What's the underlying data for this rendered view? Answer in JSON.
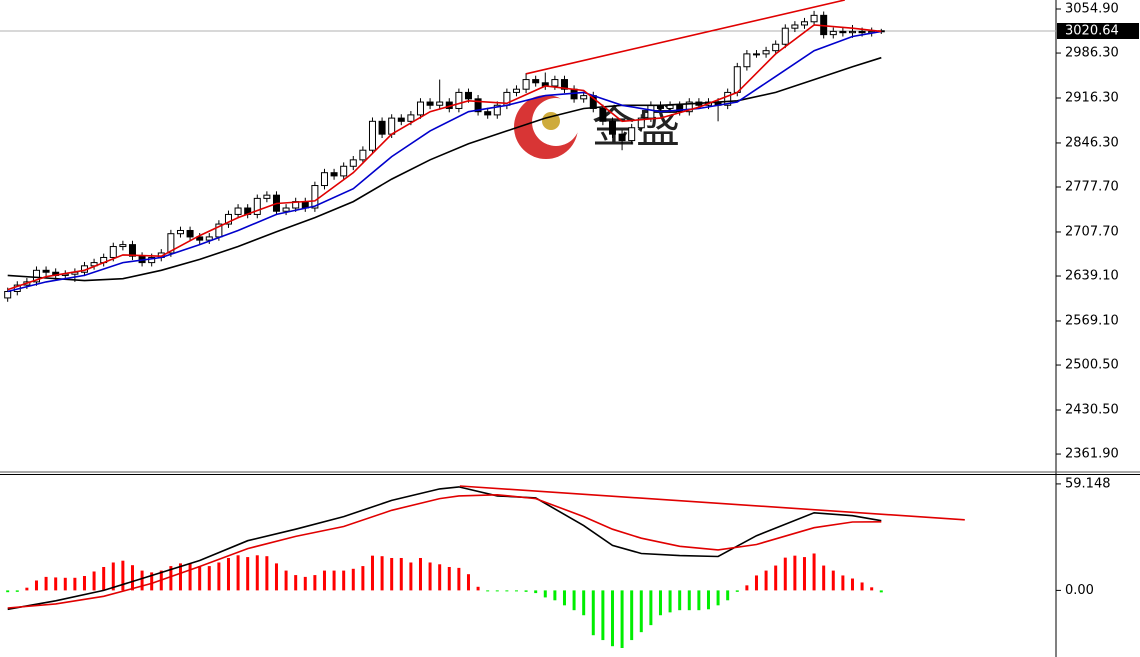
{
  "chart_data": [
    {
      "type": "candlestick",
      "xlim": [
        -0.8,
        109.2
      ],
      "ylim": [
        2335.5,
        3068.9
      ],
      "yticks": [
        {
          "value": 3054.9,
          "label": "3054.90"
        },
        {
          "value": 2986.3,
          "label": "2986.30"
        },
        {
          "value": 2916.3,
          "label": "2916.30"
        },
        {
          "value": 2846.3,
          "label": "2846.30"
        },
        {
          "value": 2777.7,
          "label": "2777.70"
        },
        {
          "value": 2707.7,
          "label": "2707.70"
        },
        {
          "value": 2639.1,
          "label": "2639.10"
        },
        {
          "value": 2569.1,
          "label": "2569.10"
        },
        {
          "value": 2500.5,
          "label": "2500.50"
        },
        {
          "value": 2430.5,
          "label": "2430.50"
        },
        {
          "value": 2361.9,
          "label": "2361.90"
        }
      ],
      "grid": false,
      "last_price": 3020.64,
      "watermark": "金盛",
      "up_color": "#ffffff",
      "down_color": "#000000",
      "open": [
        2605,
        2615,
        2625,
        2630,
        2648,
        2645,
        2640,
        2642,
        2645,
        2655,
        2660,
        2668,
        2685,
        2688,
        2670,
        2660,
        2668,
        2675,
        2705,
        2710,
        2700,
        2695,
        2700,
        2720,
        2735,
        2745,
        2735,
        2760,
        2765,
        2740,
        2745,
        2755,
        2745,
        2780,
        2800,
        2795,
        2810,
        2820,
        2835,
        2880,
        2860,
        2885,
        2880,
        2890,
        2910,
        2905,
        2910,
        2900,
        2925,
        2915,
        2895,
        2890,
        2905,
        2925,
        2930,
        2945,
        2940,
        2935,
        2945,
        2930,
        2915,
        2920,
        2900,
        2880,
        2860,
        2850,
        2870,
        2885,
        2905,
        2900,
        2905,
        2895,
        2910,
        2905,
        2910,
        2905,
        2925,
        2965,
        2985,
        2985,
        2990,
        3000,
        3025,
        3030,
        3035,
        3045,
        3015,
        3020,
        3018,
        3020,
        3018,
        3020
      ],
      "high": [
        2621,
        2631,
        2636,
        2654,
        2654,
        2651,
        2648,
        2651,
        2661,
        2666,
        2674,
        2691,
        2694,
        2694,
        2676,
        2674,
        2681,
        2711,
        2716,
        2716,
        2706,
        2706,
        2726,
        2741,
        2751,
        2751,
        2766,
        2771,
        2771,
        2751,
        2761,
        2761,
        2786,
        2806,
        2806,
        2816,
        2826,
        2841,
        2886,
        2886,
        2891,
        2891,
        2896,
        2916,
        2916,
        2945,
        2916,
        2931,
        2931,
        2921,
        2901,
        2911,
        2931,
        2936,
        2955,
        2951,
        2956,
        2951,
        2951,
        2936,
        2926,
        2926,
        2906,
        2886,
        2866,
        2876,
        2891,
        2911,
        2911,
        2911,
        2911,
        2916,
        2916,
        2916,
        2916,
        2931,
        2971,
        2991,
        2991,
        2996,
        3006,
        3031,
        3036,
        3041,
        3052,
        3051,
        3026,
        3026,
        3030,
        3026,
        3026,
        3024
      ],
      "low": [
        2599,
        2609,
        2619,
        2624,
        2639,
        2634,
        2634,
        2630,
        2639,
        2649,
        2654,
        2662,
        2679,
        2664,
        2654,
        2654,
        2662,
        2669,
        2699,
        2694,
        2689,
        2689,
        2694,
        2714,
        2729,
        2729,
        2729,
        2754,
        2734,
        2734,
        2739,
        2739,
        2739,
        2774,
        2789,
        2789,
        2804,
        2814,
        2829,
        2854,
        2854,
        2874,
        2874,
        2884,
        2899,
        2899,
        2894,
        2894,
        2909,
        2889,
        2884,
        2884,
        2899,
        2919,
        2924,
        2934,
        2929,
        2929,
        2924,
        2909,
        2909,
        2894,
        2874,
        2854,
        2835,
        2844,
        2864,
        2879,
        2894,
        2894,
        2889,
        2889,
        2899,
        2899,
        2880,
        2899,
        2919,
        2959,
        2979,
        2979,
        2984,
        2994,
        3019,
        3024,
        3029,
        3009,
        3009,
        3012,
        3010,
        3012,
        3012,
        3016
      ],
      "close": [
        2615,
        2625,
        2630,
        2648,
        2645,
        2640,
        2642,
        2645,
        2655,
        2660,
        2668,
        2685,
        2688,
        2670,
        2660,
        2668,
        2675,
        2705,
        2710,
        2700,
        2695,
        2700,
        2720,
        2735,
        2745,
        2735,
        2760,
        2765,
        2740,
        2745,
        2755,
        2745,
        2780,
        2800,
        2795,
        2810,
        2820,
        2835,
        2880,
        2860,
        2885,
        2880,
        2890,
        2910,
        2905,
        2910,
        2900,
        2925,
        2915,
        2895,
        2890,
        2905,
        2925,
        2930,
        2945,
        2940,
        2935,
        2945,
        2930,
        2915,
        2920,
        2900,
        2880,
        2860,
        2850,
        2870,
        2885,
        2905,
        2900,
        2905,
        2895,
        2910,
        2905,
        2910,
        2905,
        2925,
        2965,
        2985,
        2985,
        2990,
        3000,
        3025,
        3030,
        3035,
        3045,
        3015,
        3020,
        3018,
        3020,
        3018,
        3020,
        3021
      ],
      "series": [
        {
          "color": "#000000",
          "x": [
            0,
            4,
            8,
            12,
            16,
            20,
            24,
            28,
            32,
            36,
            40,
            44,
            48,
            52,
            56,
            60,
            64,
            68,
            72,
            76,
            80,
            84,
            88,
            91
          ],
          "values": [
            2640,
            2636,
            2632,
            2635,
            2648,
            2665,
            2685,
            2708,
            2730,
            2755,
            2790,
            2820,
            2845,
            2865,
            2885,
            2900,
            2905,
            2905,
            2908,
            2912,
            2925,
            2945,
            2965,
            2979
          ]
        },
        {
          "color": "#0000cc",
          "x": [
            0,
            4,
            8,
            12,
            16,
            20,
            24,
            28,
            32,
            36,
            40,
            44,
            48,
            52,
            56,
            60,
            64,
            68,
            72,
            76,
            80,
            84,
            88,
            91
          ],
          "values": [
            2615,
            2630,
            2640,
            2660,
            2668,
            2688,
            2710,
            2735,
            2748,
            2775,
            2825,
            2865,
            2895,
            2905,
            2920,
            2925,
            2905,
            2895,
            2900,
            2910,
            2950,
            2990,
            3012,
            3020
          ]
        },
        {
          "color": "#e00000",
          "x": [
            0,
            4,
            8,
            12,
            16,
            20,
            24,
            28,
            32,
            36,
            40,
            44,
            48,
            52,
            56,
            60,
            64,
            68,
            72,
            76,
            80,
            84,
            88,
            91
          ],
          "values": [
            2618,
            2638,
            2648,
            2672,
            2670,
            2702,
            2730,
            2752,
            2756,
            2800,
            2860,
            2895,
            2912,
            2908,
            2935,
            2928,
            2880,
            2885,
            2902,
            2925,
            2985,
            3030,
            3025,
            3020
          ]
        }
      ],
      "trendlines": [
        {
          "color": "#e00000",
          "x": [
            54,
            87.2
          ],
          "values": [
            2954,
            3068.9
          ]
        }
      ]
    },
    {
      "type": "macd",
      "xlim": [
        -0.8,
        109.2
      ],
      "ylim": [
        -37,
        64.1
      ],
      "yticks": [
        59.148,
        {
          "value": 0,
          "label": "0.00"
        }
      ],
      "up_color": "#ff0000",
      "down_color": "#00ee00",
      "values": [
        -1,
        -0.8,
        1.5,
        5.5,
        7.5,
        7.2,
        7,
        7,
        8,
        10.5,
        13,
        15.5,
        16.5,
        14,
        11,
        10,
        11,
        13.5,
        15,
        15,
        13.5,
        13.5,
        15.5,
        18,
        19.5,
        18.5,
        19.5,
        19,
        15,
        11,
        8.5,
        7.5,
        8.5,
        11,
        11,
        11,
        12,
        13.5,
        19.3,
        19,
        18,
        18,
        15.5,
        18,
        15.5,
        14.5,
        13,
        12.5,
        9,
        2,
        -0.5,
        -0.5,
        -0.3,
        -0.5,
        -0.8,
        -1.5,
        -3.9,
        -5.5,
        -8.3,
        -11,
        -13.8,
        -24.9,
        -27.6,
        -31,
        -32,
        -27.6,
        -23.2,
        -19.3,
        -13.8,
        -12.2,
        -11,
        -11,
        -11,
        -10.5,
        -8.3,
        -5.5,
        -0.8,
        2.8,
        8.3,
        11,
        13.8,
        18.2,
        19.3,
        18.5,
        20.5,
        13.8,
        11,
        8.3,
        6.6,
        4.4,
        1.7,
        -1.1
      ],
      "series": [
        {
          "color": "#000000",
          "x": [
            0,
            5,
            10,
            15,
            20,
            25,
            30,
            35,
            40,
            45,
            47,
            51,
            55,
            60,
            63,
            66,
            70,
            74,
            78,
            84,
            88,
            91
          ],
          "values": [
            -10.5,
            -5.8,
            0,
            8.3,
            16.6,
            27.6,
            34,
            41,
            50,
            56.4,
            57.5,
            52.5,
            51.4,
            36,
            25,
            20.5,
            19.3,
            18.8,
            30.4,
            43.1,
            41.5,
            38.7
          ]
        },
        {
          "color": "#e00000",
          "x": [
            0,
            5,
            10,
            15,
            20,
            25,
            30,
            35,
            40,
            45,
            47,
            51,
            55,
            60,
            63,
            66,
            70,
            74,
            78,
            84,
            88,
            91
          ],
          "values": [
            -9.8,
            -7.5,
            -3.3,
            3.9,
            13.3,
            23.2,
            30,
            35.5,
            44.5,
            51,
            52.5,
            53.1,
            51,
            41,
            34,
            29,
            24.5,
            22.5,
            25.5,
            34.8,
            38,
            38.1
          ]
        }
      ],
      "trendlines": [
        {
          "color": "#e00000",
          "x": [
            47.1,
            99.7
          ],
          "values": [
            58,
            39.2
          ]
        }
      ]
    }
  ]
}
